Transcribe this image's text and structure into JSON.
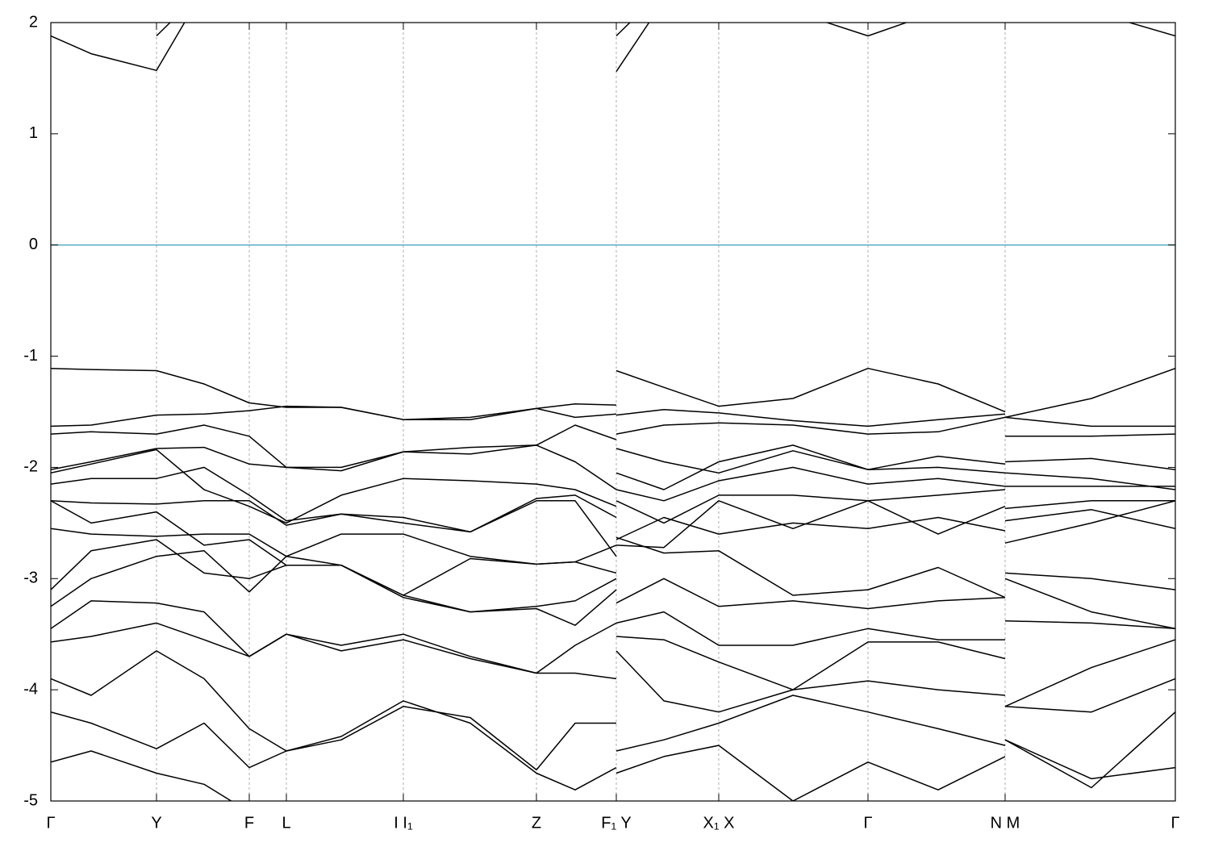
{
  "chart_data": {
    "type": "line",
    "x": [
      0,
      0.5,
      1.31,
      1.9,
      2.46,
      2.92,
      3.6,
      4.37,
      5.2,
      6.02,
      6.5,
      7.01,
      7.01,
      7.01,
      7.6,
      8.28,
      9.2,
      10.13,
      11.0,
      11.83,
      11.83,
      11.83,
      12.9,
      13.94
    ],
    "xlim": [
      0,
      13.94
    ],
    "xticks": [
      {
        "value": 0,
        "label": "Γ"
      },
      {
        "value": 1.31,
        "label": "Y"
      },
      {
        "value": 2.46,
        "label": "F"
      },
      {
        "value": 2.92,
        "label": "L"
      },
      {
        "value": 4.37,
        "label": "I I₁"
      },
      {
        "value": 6.02,
        "label": "Z"
      },
      {
        "value": 7.01,
        "label": "F₁ Y"
      },
      {
        "value": 8.28,
        "label": "X₁ X"
      },
      {
        "value": 10.13,
        "label": "Γ"
      },
      {
        "value": 11.83,
        "label": "N M"
      },
      {
        "value": 13.94,
        "label": "Γ"
      }
    ],
    "ylim": [
      -5,
      2
    ],
    "yticks": [
      -5,
      -4,
      -3,
      -2,
      -1,
      0,
      1,
      2
    ],
    "grid": true,
    "color": "#000000",
    "hline": {
      "value": 0,
      "color": "#5aaec8"
    },
    "series": [
      {
        "values": [
          1.88,
          1.72,
          1.57,
          2.3,
          null,
          null,
          null,
          null,
          null,
          null,
          null,
          null,
          null,
          1.56,
          2.2,
          null,
          null,
          null,
          null,
          null,
          null,
          null,
          null,
          null
        ]
      },
      {
        "values": [
          null,
          null,
          1.88,
          2.3,
          null,
          null,
          null,
          null,
          null,
          null,
          null,
          null,
          null,
          1.88,
          2.3,
          null,
          2.1,
          1.88,
          2.1,
          null,
          null,
          null,
          2.1,
          1.88
        ]
      },
      {
        "values": [
          -1.11,
          -1.12,
          -1.13,
          -1.25,
          -1.42,
          -1.46,
          -1.46,
          -1.57,
          -1.55,
          -1.47,
          -1.43,
          -1.44,
          null,
          -1.13,
          -1.28,
          -1.45,
          -1.38,
          -1.11,
          -1.25,
          -1.5,
          null,
          -1.55,
          -1.38,
          -1.11
        ]
      },
      {
        "values": [
          -1.63,
          -1.62,
          -1.53,
          -1.52,
          -1.49,
          -1.45,
          -1.46,
          -1.57,
          -1.57,
          -1.47,
          -1.55,
          -1.52,
          null,
          -1.53,
          -1.48,
          -1.51,
          -1.58,
          -1.63,
          -1.57,
          -1.52,
          null,
          -1.55,
          -1.63,
          -1.63
        ]
      },
      {
        "values": [
          -1.7,
          -1.68,
          -1.7,
          -1.62,
          -1.72,
          -2.0,
          -2.03,
          -1.86,
          -1.88,
          -1.8,
          -1.62,
          -1.75,
          null,
          -1.7,
          -1.62,
          -1.6,
          -1.62,
          -1.7,
          -1.68,
          -1.55,
          null,
          -1.72,
          -1.72,
          -1.7
        ]
      },
      {
        "values": [
          -2.02,
          -1.95,
          -1.83,
          -1.82,
          -1.97,
          -2.0,
          -2.0,
          -1.86,
          -1.82,
          -1.8,
          -1.95,
          -2.2,
          null,
          -1.83,
          -1.95,
          -2.05,
          -1.85,
          -2.02,
          -1.9,
          -1.97,
          null,
          -1.95,
          -1.92,
          -2.02
        ]
      },
      {
        "values": [
          -2.05,
          -1.97,
          -1.84,
          -2.2,
          -2.35,
          -2.5,
          -2.25,
          -2.1,
          -2.12,
          -2.15,
          -2.2,
          -2.35,
          null,
          -2.05,
          -2.2,
          -1.95,
          -1.8,
          -2.02,
          -2.0,
          -2.05,
          null,
          -2.05,
          -2.1,
          -2.2
        ]
      },
      {
        "values": [
          -2.15,
          -2.1,
          -2.1,
          -2.0,
          -2.25,
          -2.48,
          -2.42,
          -2.5,
          -2.58,
          -2.3,
          -2.3,
          -2.8,
          null,
          -2.2,
          -2.3,
          -2.12,
          -2.0,
          -2.15,
          -2.1,
          -2.17,
          null,
          -2.17,
          -2.17,
          -2.17
        ]
      },
      {
        "values": [
          -2.3,
          -2.32,
          -2.33,
          -2.3,
          -2.3,
          -2.52,
          -2.42,
          -2.45,
          -2.58,
          -2.28,
          -2.25,
          -2.45,
          null,
          -2.3,
          -2.5,
          -2.25,
          -2.25,
          -2.3,
          -2.25,
          -2.2,
          null,
          -2.37,
          -2.3,
          -2.3
        ]
      },
      {
        "values": [
          -2.55,
          -2.6,
          -2.62,
          -2.6,
          -2.6,
          -2.8,
          -2.6,
          -2.6,
          -2.8,
          -2.87,
          -2.85,
          -2.7,
          null,
          -2.65,
          -2.45,
          -2.6,
          -2.5,
          -2.55,
          -2.45,
          -2.57,
          null,
          -2.48,
          -2.38,
          -2.55
        ]
      },
      {
        "values": [
          -2.3,
          -2.5,
          -2.4,
          -2.7,
          -2.65,
          -2.88,
          -2.88,
          -3.15,
          -2.82,
          -2.87,
          -2.85,
          -2.95,
          null,
          -2.7,
          -2.72,
          -2.3,
          -2.55,
          -2.3,
          -2.6,
          -2.35,
          null,
          -2.68,
          -2.5,
          -2.3
        ]
      },
      {
        "values": [
          -3.1,
          -2.75,
          -2.65,
          -2.95,
          -3.0,
          -2.88,
          -2.88,
          -3.17,
          -3.3,
          -3.27,
          -3.42,
          -3.1,
          null,
          -2.63,
          -2.77,
          -2.75,
          -3.15,
          -3.1,
          -2.9,
          -3.17,
          null,
          -2.95,
          -3.0,
          -3.1
        ]
      },
      {
        "values": [
          -3.25,
          -3.0,
          -2.8,
          -2.75,
          -3.12,
          -2.8,
          -2.88,
          -3.15,
          -3.3,
          -3.25,
          -3.2,
          -3.0,
          null,
          -3.22,
          -3.0,
          -3.25,
          -3.2,
          -3.27,
          -3.2,
          -3.17,
          null,
          -3.0,
          -3.3,
          -3.45
        ]
      },
      {
        "values": [
          -3.45,
          -3.2,
          -3.22,
          -3.3,
          -3.7,
          -3.5,
          -3.6,
          -3.5,
          -3.7,
          -3.85,
          -3.6,
          -3.4,
          null,
          -3.4,
          -3.3,
          -3.6,
          -3.6,
          -3.45,
          -3.55,
          -3.55,
          null,
          -3.38,
          -3.4,
          -3.45
        ]
      },
      {
        "values": [
          -3.57,
          -3.52,
          -3.4,
          -3.55,
          -3.7,
          -3.5,
          -3.65,
          -3.55,
          -3.72,
          -3.85,
          -3.85,
          -3.9,
          null,
          -3.52,
          -3.55,
          -3.75,
          -4.0,
          -3.57,
          -3.57,
          -3.72,
          null,
          -4.15,
          -3.8,
          -3.55
        ]
      },
      {
        "values": [
          -3.9,
          -4.05,
          -3.65,
          -3.9,
          -4.35,
          -4.55,
          -4.45,
          -4.15,
          -4.25,
          -4.72,
          -4.3,
          -4.3,
          null,
          -3.65,
          -4.1,
          -4.2,
          -4.0,
          -3.92,
          -4.0,
          -4.05,
          null,
          -4.15,
          -4.2,
          -3.9
        ]
      },
      {
        "values": [
          -4.2,
          -4.3,
          -4.53,
          -4.3,
          -4.7,
          -4.55,
          -4.42,
          -4.1,
          -4.3,
          -4.75,
          -4.9,
          -4.7,
          null,
          -4.55,
          -4.45,
          -4.3,
          -4.05,
          -4.2,
          -4.35,
          -4.5,
          null,
          -4.45,
          -4.88,
          -4.2
        ]
      },
      {
        "values": [
          -4.65,
          -4.55,
          -4.75,
          -4.85,
          -5.1,
          null,
          null,
          null,
          null,
          null,
          null,
          null,
          null,
          -4.75,
          -4.6,
          -4.5,
          -5.0,
          -4.65,
          -4.9,
          -4.6,
          null,
          -4.45,
          -4.8,
          -4.7
        ]
      }
    ]
  }
}
